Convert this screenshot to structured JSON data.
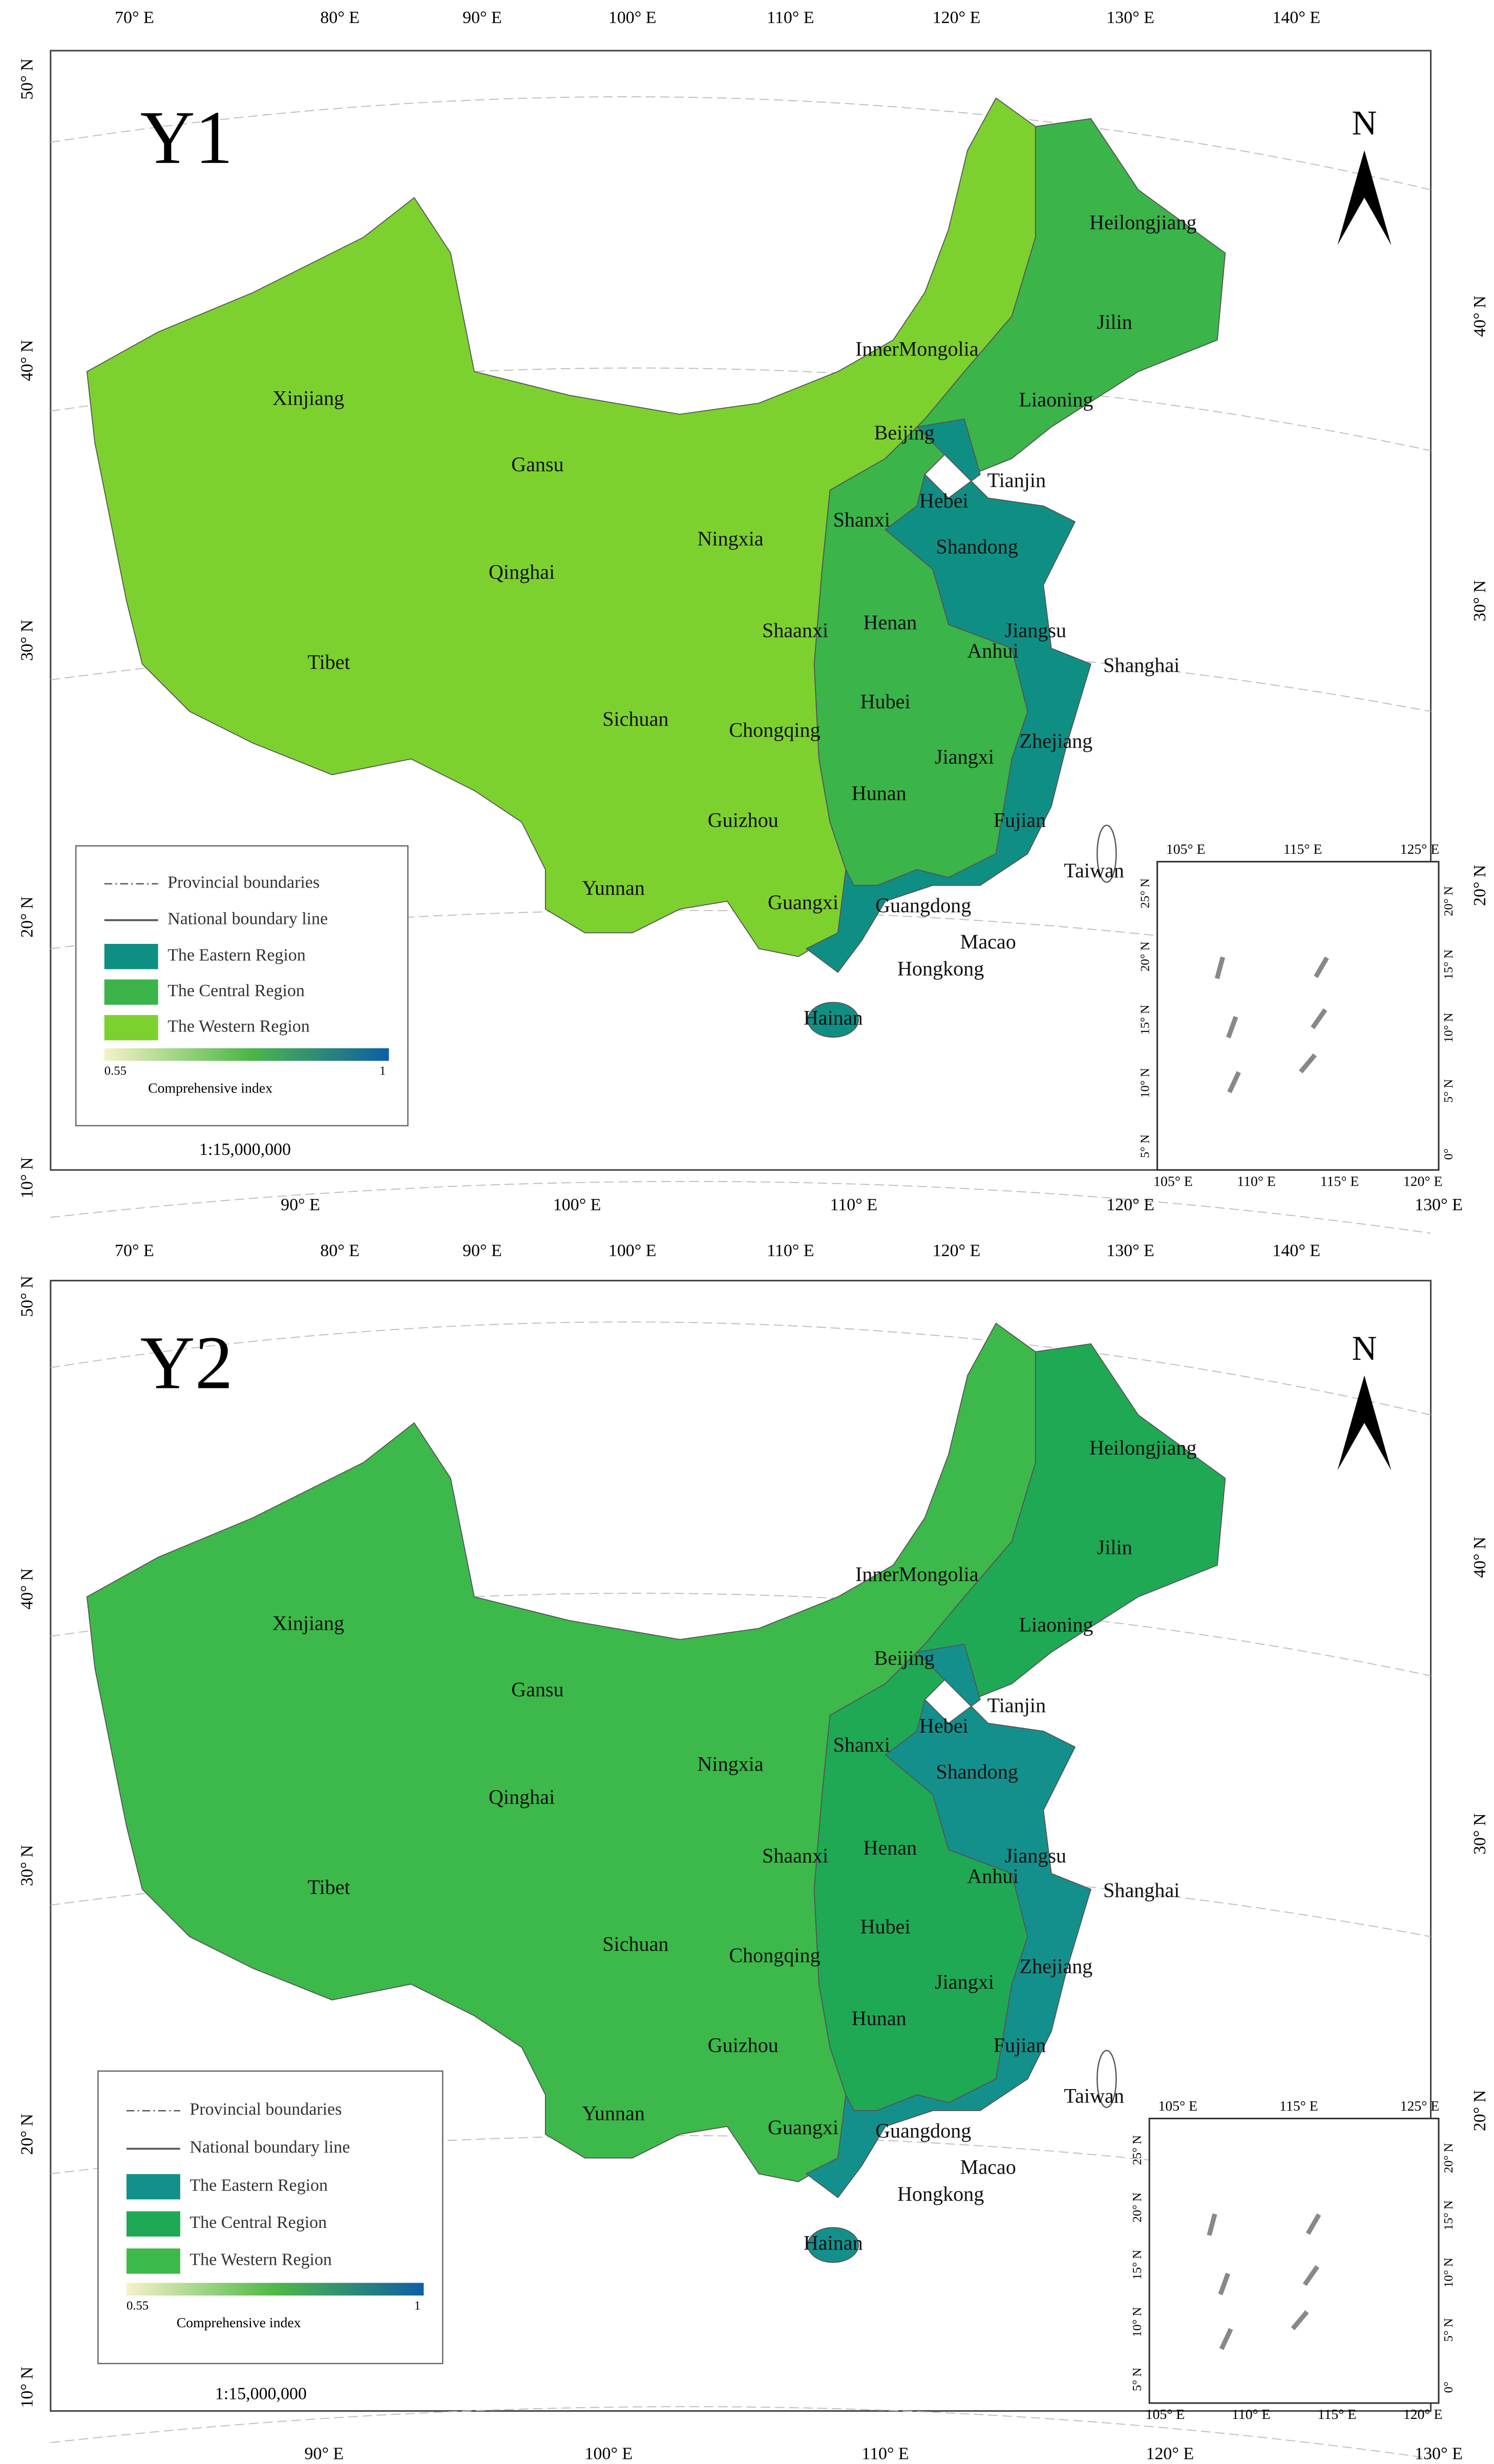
{
  "panels": [
    {
      "title": "Y1",
      "north": "N",
      "lon_top": [
        "70° E",
        "80° E",
        "90° E",
        "100° E",
        "110° E",
        "120° E",
        "130° E",
        "140° E"
      ],
      "lon_bottom": [
        "90° E",
        "100° E",
        "110° E",
        "120° E",
        "130° E"
      ],
      "lat_left": [
        "50° N",
        "40° N",
        "30° N",
        "20° N",
        "10° N"
      ],
      "lat_right": [
        "40° N",
        "30° N",
        "20° N"
      ],
      "provinces": [
        "Xinjiang",
        "Gansu",
        "Qinghai",
        "Tibet",
        "Ningxia",
        "Shaanxi",
        "Sichuan",
        "Chongqing",
        "Guizhou",
        "Yunnan",
        "Guangxi",
        "InnerMongolia",
        "Heilongjiang",
        "Jilin",
        "Liaoning",
        "Beijing",
        "Tianjin",
        "Hebei",
        "Shanxi",
        "Shandong",
        "Henan",
        "Jiangsu",
        "Shanghai",
        "Anhui",
        "Hubei",
        "Zhejiang",
        "Jiangxi",
        "Hunan",
        "Fujian",
        "Taiwan",
        "Guangdong",
        "Macao",
        "Hongkong",
        "Hainan"
      ],
      "legend": {
        "lines": [
          "Provincial boundaries",
          "National boundary line"
        ],
        "regions": [
          {
            "name": "The Eastern Region",
            "color": "#0f8f84"
          },
          {
            "name": "The Central Region",
            "color": "#3bb449"
          },
          {
            "name": "The Western Region",
            "color": "#7dd12f"
          }
        ],
        "colorbar_min": "0.55",
        "colorbar_max": "1",
        "colorbar_label": "Comprehensive index"
      },
      "scale": "1:15,000,000",
      "inset": {
        "top": [
          "105° E",
          "115° E",
          "125° E"
        ],
        "bottom": [
          "105° E",
          "110° E",
          "115° E",
          "120° E"
        ],
        "left": [
          "25° N",
          "20° N",
          "15° N",
          "10° N",
          "5° N"
        ],
        "right": [
          "20° N",
          "15° N",
          "10° N",
          "5° N",
          "0°"
        ]
      }
    },
    {
      "title": "Y2",
      "north": "N",
      "lon_top": [
        "70° E",
        "80° E",
        "90° E",
        "100° E",
        "110° E",
        "120° E",
        "130° E",
        "140° E"
      ],
      "lon_bottom": [
        "90° E",
        "100° E",
        "110° E",
        "120° E",
        "130° E"
      ],
      "lat_left": [
        "50° N",
        "40° N",
        "30° N",
        "20° N",
        "10° N"
      ],
      "lat_right": [
        "40° N",
        "30° N",
        "20° N"
      ],
      "provinces": [
        "Xinjiang",
        "Gansu",
        "Qinghai",
        "Tibet",
        "Ningxia",
        "Shaanxi",
        "Sichuan",
        "Chongqing",
        "Guizhou",
        "Yunnan",
        "Guangxi",
        "InnerMongolia",
        "Heilongjiang",
        "Jilin",
        "Liaoning",
        "Beijing",
        "Tianjin",
        "Hebei",
        "Shanxi",
        "Shandong",
        "Henan",
        "Jiangsu",
        "Shanghai",
        "Anhui",
        "Hubei",
        "Zhejiang",
        "Jiangxi",
        "Hunan",
        "Fujian",
        "Taiwan",
        "Guangdong",
        "Macao",
        "Hongkong",
        "Hainan"
      ],
      "legend": {
        "lines": [
          "Provincial boundaries",
          "National boundary line"
        ],
        "regions": [
          {
            "name": "The Eastern Region",
            "color": "#14908c"
          },
          {
            "name": "The Central Region",
            "color": "#1fa955"
          },
          {
            "name": "The Western Region",
            "color": "#3cb94a"
          }
        ],
        "colorbar_min": "0.55",
        "colorbar_max": "1",
        "colorbar_label": "Comprehensive index"
      },
      "scale": "1:15,000,000",
      "inset": {
        "top": [
          "105° E",
          "115° E",
          "125° E"
        ],
        "bottom": [
          "105° E",
          "110° E",
          "115° E",
          "120° E"
        ],
        "left": [
          "25° N",
          "20° N",
          "15° N",
          "10° N",
          "5° N"
        ],
        "right": [
          "20° N",
          "15° N",
          "10° N",
          "5° N",
          "0°"
        ]
      }
    }
  ]
}
